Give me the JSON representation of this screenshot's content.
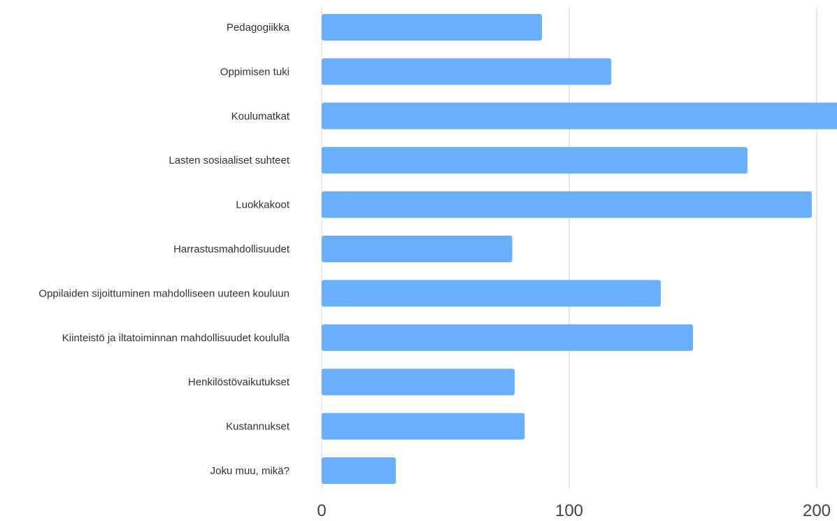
{
  "chart_data": {
    "type": "bar",
    "orientation": "horizontal",
    "categories": [
      "Pedagogiikka",
      "Oppimisen tuki",
      "Koulumatkat",
      "Lasten sosiaaliset suhteet",
      "Luokkakoot",
      "Harrastusmahdollisuudet",
      "Oppilaiden sijoittuminen mahdolliseen uuteen kouluun",
      "Kiinteistö ja iltatoiminnan mahdollisuudet koululla",
      "Henkilöstövaikutukset",
      "Kustannukset",
      "Joku muu, mikä?"
    ],
    "values": [
      89,
      117,
      212,
      172,
      198,
      77,
      137,
      150,
      78,
      82,
      30
    ],
    "xlim": [
      0,
      208
    ],
    "xticks": [
      0,
      100,
      200
    ],
    "xtick_labels": [
      "0",
      "100",
      "200"
    ],
    "title": "",
    "xlabel": "",
    "ylabel": "",
    "grid": true,
    "bar_color": "#6aaffb",
    "grid_color": "#e3e3e3"
  }
}
